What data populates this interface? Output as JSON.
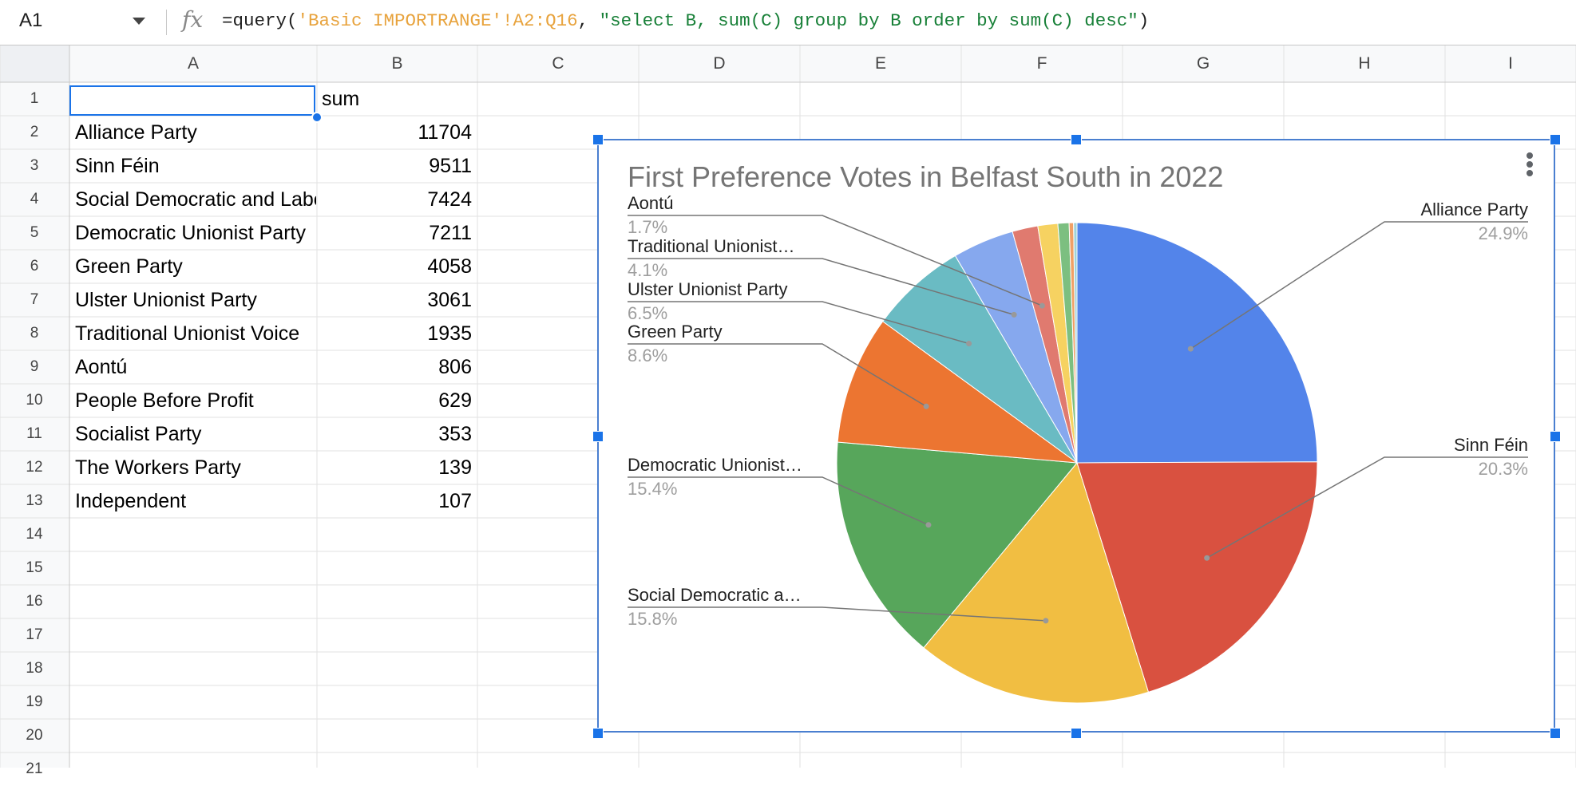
{
  "formula_bar": {
    "name_box": "A1",
    "fx": "fx",
    "formula_parts": [
      {
        "text": "=query(",
        "color": "#1f1f1f"
      },
      {
        "text": "'Basic IMPORTRANGE'!A2:Q16",
        "color": "#e8a33d"
      },
      {
        "text": ", ",
        "color": "#1f1f1f"
      },
      {
        "text": "\"select B, sum(C) group by B order by sum(C) desc\"",
        "color": "#188038"
      },
      {
        "text": ")",
        "color": "#1f1f1f"
      }
    ]
  },
  "sheet": {
    "columns": [
      "A",
      "B",
      "C",
      "D",
      "E",
      "F",
      "G",
      "H",
      "I"
    ],
    "row_numbers": [
      "1",
      "2",
      "3",
      "4",
      "5",
      "6",
      "7",
      "8",
      "9",
      "10",
      "11",
      "12",
      "13",
      "14",
      "15",
      "16",
      "17",
      "18",
      "19",
      "20",
      "21"
    ],
    "header_row": {
      "a": "",
      "b": "sum"
    },
    "rows": [
      {
        "a": "Alliance Party",
        "b": "11704"
      },
      {
        "a": "Sinn Féin",
        "b": "9511"
      },
      {
        "a": "Social Democratic and Labour Party",
        "b": "7424"
      },
      {
        "a": "Democratic Unionist Party",
        "b": "7211"
      },
      {
        "a": "Green Party",
        "b": "4058"
      },
      {
        "a": "Ulster Unionist Party",
        "b": "3061"
      },
      {
        "a": "Traditional Unionist Voice",
        "b": "1935"
      },
      {
        "a": "Aontú",
        "b": "806"
      },
      {
        "a": "People Before Profit",
        "b": "629"
      },
      {
        "a": "Socialist Party",
        "b": "353"
      },
      {
        "a": "The Workers Party",
        "b": "139"
      },
      {
        "a": "Independent",
        "b": "107"
      }
    ]
  },
  "chart_data": {
    "type": "pie",
    "title": "First Preference Votes in Belfast South in 2022",
    "categories": [
      "Alliance Party",
      "Sinn Féin",
      "Social Democratic and Labour Party",
      "Democratic Unionist Party",
      "Green Party",
      "Ulster Unionist Party",
      "Traditional Unionist Voice",
      "Aontú",
      "People Before Profit",
      "Socialist Party",
      "The Workers Party",
      "Independent"
    ],
    "values": [
      11704,
      9511,
      7424,
      7211,
      4058,
      3061,
      1935,
      806,
      629,
      353,
      139,
      107
    ],
    "colors": [
      "#5384ea",
      "#d95140",
      "#f1be42",
      "#57a65b",
      "#ec7531",
      "#6abbc3",
      "#86a8ee",
      "#e07a6f",
      "#f6d261",
      "#7cbf80",
      "#f0a066",
      "#9fd3d8"
    ],
    "labels": [
      {
        "name": "Alliance Party",
        "pct": "24.9%"
      },
      {
        "name": "Sinn Féin",
        "pct": "20.3%"
      },
      {
        "name": "Social Democratic a…",
        "pct": "15.8%"
      },
      {
        "name": "Democratic Unionist…",
        "pct": "15.4%"
      },
      {
        "name": "Green Party",
        "pct": "8.6%"
      },
      {
        "name": "Ulster Unionist Party",
        "pct": "6.5%"
      },
      {
        "name": "Traditional Unionist…",
        "pct": "4.1%"
      },
      {
        "name": "Aontú",
        "pct": "1.7%"
      }
    ],
    "legend": "labels"
  }
}
